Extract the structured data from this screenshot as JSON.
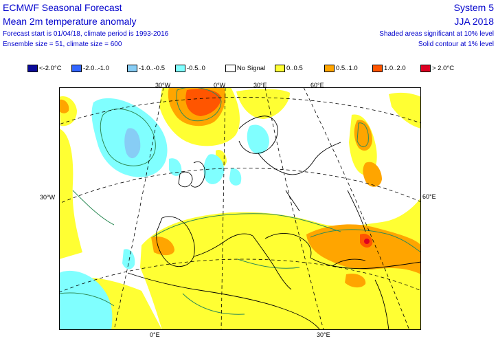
{
  "header": {
    "title": "ECMWF Seasonal Forecast",
    "subtitle": "Mean 2m temperature anomaly",
    "forecast_line": "Forecast start is 01/04/18, climate period is 1993-2016",
    "ensemble_line": "Ensemble size = 51, climate size = 600",
    "system": "System 5",
    "season": "JJA 2018",
    "sig_note_1": "Shaded areas significant at 10% level",
    "sig_note_2": "Solid contour at 1% level"
  },
  "legend": [
    {
      "label": "<-2.0°C",
      "color": "#0b0b9a"
    },
    {
      "label": "-2.0..-1.0",
      "color": "#3366ff"
    },
    {
      "label": "-1.0..-0.5",
      "color": "#87cdf5"
    },
    {
      "label": "-0.5..0",
      "color": "#80ffff"
    },
    {
      "label": "No Signal",
      "color": "#ffffff"
    },
    {
      "label": "0..0.5",
      "color": "#ffff33"
    },
    {
      "label": "0.5..1.0",
      "color": "#ffa500"
    },
    {
      "label": "1.0..2.0",
      "color": "#ff5500"
    },
    {
      "label": "> 2.0°C",
      "color": "#dd0022"
    }
  ],
  "coords": {
    "top_30w": "30°W",
    "top_0e": "0°W",
    "top_30e": "30°E",
    "top_60e": "60°E",
    "left_30w": "30°W",
    "right_60e": "60°E",
    "bottom_0e": "0°E",
    "bottom_30e": "30°E"
  },
  "colors": {
    "header_text": "#0000cc",
    "contour": "#2e8b57",
    "coast": "#000000"
  }
}
